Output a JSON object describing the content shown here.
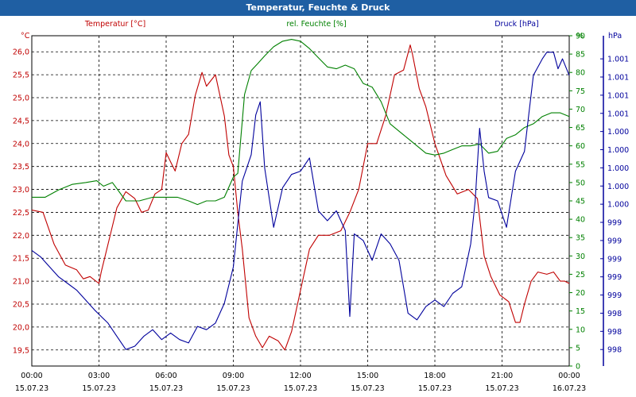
{
  "window": {
    "title": "Temperatur, Feuchte & Druck"
  },
  "chart_data": {
    "type": "line",
    "title": "Temperatur, Feuchte & Druck",
    "grid": true,
    "colors": {
      "temperature": "#c00000",
      "humidity": "#008000",
      "pressure": "#00009c"
    },
    "x_range_hours": [
      0,
      24
    ],
    "x_ticks": [
      {
        "h": 0,
        "time": "00:00",
        "date": "15.07.23"
      },
      {
        "h": 3,
        "time": "03:00",
        "date": "15.07.23"
      },
      {
        "h": 6,
        "time": "06:00",
        "date": "15.07.23"
      },
      {
        "h": 9,
        "time": "09:00",
        "date": "15.07.23"
      },
      {
        "h": 12,
        "time": "12:00",
        "date": "15.07.23"
      },
      {
        "h": 15,
        "time": "15:00",
        "date": "15.07.23"
      },
      {
        "h": 18,
        "time": "18:00",
        "date": "15.07.23"
      },
      {
        "h": 21,
        "time": "21:00",
        "date": "15.07.23"
      },
      {
        "h": 24,
        "time": "00:00",
        "date": "16.07.23"
      }
    ],
    "axes": {
      "temperature": {
        "label": "Temperatur [°C]",
        "unit": "°C",
        "range": [
          19.15,
          26.35
        ],
        "ticks": [
          {
            "v": 19.5,
            "t": "19,5"
          },
          {
            "v": 20.0,
            "t": "20,0"
          },
          {
            "v": 20.5,
            "t": "20,5"
          },
          {
            "v": 21.0,
            "t": "21,0"
          },
          {
            "v": 21.5,
            "t": "21,5"
          },
          {
            "v": 22.0,
            "t": "22,0"
          },
          {
            "v": 22.5,
            "t": "22,5"
          },
          {
            "v": 23.0,
            "t": "23,0"
          },
          {
            "v": 23.5,
            "t": "23,5"
          },
          {
            "v": 24.0,
            "t": "24,0"
          },
          {
            "v": 24.5,
            "t": "24,5"
          },
          {
            "v": 25.0,
            "t": "25,0"
          },
          {
            "v": 25.5,
            "t": "25,5"
          },
          {
            "v": 26.0,
            "t": "26,0"
          }
        ]
      },
      "humidity": {
        "label": "rel. Feuchte [%]",
        "unit": "%",
        "range": [
          0,
          90
        ],
        "ticks": [
          {
            "v": 0,
            "t": "0"
          },
          {
            "v": 5,
            "t": "5"
          },
          {
            "v": 10,
            "t": "10"
          },
          {
            "v": 15,
            "t": "15"
          },
          {
            "v": 20,
            "t": "20"
          },
          {
            "v": 25,
            "t": "25"
          },
          {
            "v": 30,
            "t": "30"
          },
          {
            "v": 35,
            "t": "35"
          },
          {
            "v": 40,
            "t": "40"
          },
          {
            "v": 45,
            "t": "45"
          },
          {
            "v": 50,
            "t": "50"
          },
          {
            "v": 55,
            "t": "55"
          },
          {
            "v": 60,
            "t": "60"
          },
          {
            "v": 65,
            "t": "65"
          },
          {
            "v": 70,
            "t": "70"
          },
          {
            "v": 75,
            "t": "75"
          },
          {
            "v": 80,
            "t": "80"
          },
          {
            "v": 85,
            "t": "85"
          },
          {
            "v": 90,
            "t": "90"
          }
        ]
      },
      "pressure": {
        "label": "Druck [hPa]",
        "unit": "hPa",
        "range": [
          0,
          100
        ],
        "ticks": [
          {
            "v": 5,
            "t": "998"
          },
          {
            "v": 10.5,
            "t": "998"
          },
          {
            "v": 16,
            "t": "998"
          },
          {
            "v": 21.5,
            "t": "999"
          },
          {
            "v": 27,
            "t": "999"
          },
          {
            "v": 32.5,
            "t": "999"
          },
          {
            "v": 38,
            "t": "999"
          },
          {
            "v": 43.5,
            "t": "999"
          },
          {
            "v": 49,
            "t": "1.000"
          },
          {
            "v": 54.5,
            "t": "1.000"
          },
          {
            "v": 60,
            "t": "1.000"
          },
          {
            "v": 65.5,
            "t": "1.000"
          },
          {
            "v": 71,
            "t": "1.000"
          },
          {
            "v": 76.5,
            "t": "1.001"
          },
          {
            "v": 82,
            "t": "1.001"
          },
          {
            "v": 87.5,
            "t": "1.001"
          },
          {
            "v": 93,
            "t": "1.001"
          }
        ]
      }
    },
    "series": [
      {
        "name": "Temperatur [°C]",
        "axis": "temperature",
        "color": "#c00000",
        "x": [
          0,
          0.5,
          1,
          1.5,
          2,
          2.3,
          2.6,
          3,
          3.1,
          3.4,
          3.8,
          4.2,
          4.6,
          4.9,
          5.2,
          5.5,
          5.8,
          6,
          6.2,
          6.4,
          6.7,
          7,
          7.3,
          7.6,
          7.8,
          8.2,
          8.6,
          8.8,
          9,
          9.2,
          9.4,
          9.7,
          10,
          10.3,
          10.6,
          11,
          11.3,
          11.6,
          12,
          12.4,
          12.8,
          13.3,
          13.8,
          14.2,
          14.6,
          15,
          15.4,
          15.8,
          16.2,
          16.6,
          16.9,
          17,
          17.3,
          17.6,
          18,
          18.5,
          19,
          19.5,
          19.9,
          20.2,
          20.5,
          20.9,
          21.3,
          21.6,
          21.8,
          22,
          22.3,
          22.6,
          23,
          23.3,
          23.6,
          23.8,
          24
        ],
        "y": [
          22.55,
          22.5,
          21.8,
          21.35,
          21.25,
          21.05,
          21.1,
          20.95,
          21.2,
          21.8,
          22.6,
          22.95,
          22.8,
          22.5,
          22.55,
          22.9,
          23.0,
          23.8,
          23.6,
          23.4,
          24.0,
          24.2,
          25.05,
          25.55,
          25.25,
          25.5,
          24.6,
          23.75,
          23.5,
          22.5,
          21.7,
          20.2,
          19.8,
          19.55,
          19.8,
          19.7,
          19.5,
          19.9,
          20.8,
          21.7,
          22.0,
          22.0,
          22.1,
          22.5,
          23.0,
          24.0,
          24.0,
          24.6,
          25.5,
          25.6,
          26.15,
          25.95,
          25.2,
          24.8,
          24.0,
          23.3,
          22.9,
          23.0,
          22.8,
          21.55,
          21.1,
          20.7,
          20.55,
          20.1,
          20.1,
          20.5,
          21.0,
          21.2,
          21.15,
          21.2,
          21.0,
          21.0,
          20.95
        ]
      },
      {
        "name": "rel. Feuchte [%]",
        "axis": "humidity",
        "color": "#008000",
        "x": [
          0,
          0.6,
          1.2,
          1.8,
          2.4,
          2.9,
          3.2,
          3.6,
          4.2,
          4.8,
          5.4,
          6,
          6.5,
          7,
          7.4,
          7.8,
          8.2,
          8.6,
          9,
          9.2,
          9.5,
          9.8,
          10.1,
          10.4,
          10.8,
          11.2,
          11.6,
          12,
          12.4,
          12.8,
          13.2,
          13.6,
          14,
          14.4,
          14.8,
          15.2,
          15.6,
          16,
          16.4,
          16.8,
          17.2,
          17.6,
          18,
          18.4,
          18.8,
          19.2,
          19.6,
          20,
          20.4,
          20.8,
          21.2,
          21.6,
          22,
          22.4,
          22.8,
          23.2,
          23.6,
          24
        ],
        "y": [
          46,
          46,
          48,
          49.5,
          50,
          50.5,
          49,
          50,
          45,
          45,
          46,
          46,
          46,
          45,
          44,
          45,
          45,
          46,
          51.5,
          52.5,
          74,
          80.5,
          82.5,
          84.5,
          87,
          88.5,
          89,
          88.5,
          86.5,
          84,
          81.5,
          81,
          82,
          81,
          77,
          76,
          72,
          66,
          64,
          62,
          60,
          58,
          57.5,
          58,
          59,
          60,
          60,
          60.5,
          58,
          58.5,
          62,
          63,
          65,
          66,
          68,
          69,
          69,
          68
        ]
      },
      {
        "name": "Druck [hPa]",
        "axis": "pressure",
        "color": "#00009c",
        "x": [
          0,
          0.4,
          0.8,
          1.2,
          1.6,
          2,
          2.4,
          2.8,
          3.1,
          3.4,
          3.8,
          4.2,
          4.6,
          5,
          5.4,
          5.8,
          6.2,
          6.6,
          7,
          7.4,
          7.8,
          8.2,
          8.6,
          9,
          9.2,
          9.4,
          9.6,
          9.8,
          10,
          10.2,
          10.4,
          10.8,
          11.2,
          11.6,
          12,
          12.4,
          12.8,
          13.2,
          13.6,
          14,
          14.2,
          14.4,
          14.8,
          15.2,
          15.6,
          16,
          16.4,
          16.8,
          17.2,
          17.6,
          18,
          18.4,
          18.8,
          19.2,
          19.6,
          19.8,
          20,
          20.2,
          20.4,
          20.8,
          21.2,
          21.6,
          22,
          22.4,
          22.8,
          23,
          23.3,
          23.5,
          23.7,
          24
        ],
        "y": [
          35,
          33,
          30,
          27,
          25,
          23,
          20,
          17,
          15,
          13,
          9,
          5,
          6,
          9,
          11,
          8,
          10,
          8,
          7,
          12,
          11,
          13,
          19,
          30,
          43,
          56,
          60,
          64,
          76,
          80,
          60,
          42,
          54,
          58,
          59,
          63,
          47,
          44,
          47,
          41,
          15,
          40,
          38,
          32,
          40,
          37,
          32,
          16,
          14,
          18,
          20,
          18,
          22,
          24,
          37,
          50,
          72,
          59,
          51,
          50,
          42,
          59,
          65,
          88,
          93,
          95,
          95,
          90,
          93,
          88
        ]
      }
    ]
  }
}
